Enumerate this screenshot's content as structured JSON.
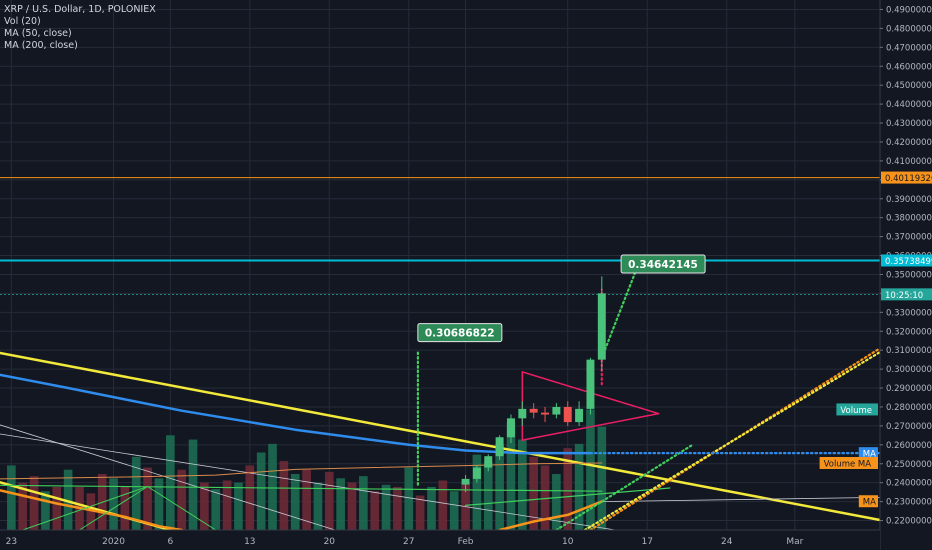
{
  "legend": {
    "title": "XRP / U.S. Dollar, 1D, POLONIEX",
    "vol": "Vol (20)",
    "ma50": "MA (50, close)",
    "ma200": "MA (200, close)"
  },
  "colors": {
    "background": "#131722",
    "grid": "#262b3a",
    "up": "#26a69a",
    "up_bright": "#4bc27b",
    "down": "#ef5350",
    "vol_up": "#1e6b52",
    "vol_down": "#6e2a37",
    "trend_yellow": "#f2e93b",
    "ma200_blue": "#2f8cec",
    "ma50_orange": "#f7931a",
    "projection_green": "#3fcf5a",
    "triangle_pink": "#e91e63",
    "resistance_orange": "#f7931a",
    "resistance_cyan": "#00bcd4"
  },
  "chart_data": {
    "type": "candlestick",
    "title": "XRP / U.S. Dollar, 1D, POLONIEX",
    "ylim": [
      0.215,
      0.495
    ],
    "price_axis_ticks": [
      "0.49000000",
      "0.48000000",
      "0.47000000",
      "0.46000000",
      "0.45000000",
      "0.44000000",
      "0.43000000",
      "0.42000000",
      "0.41000000",
      "0.40000000",
      "0.39000000",
      "0.38000000",
      "0.37000000",
      "0.36000000",
      "0.35000000",
      "0.34000000",
      "0.33000000",
      "0.32000000",
      "0.31000000",
      "0.30000000",
      "0.29000000",
      "0.28000000",
      "0.27000000",
      "0.26000000",
      "0.25000000",
      "0.24000000",
      "0.23000000",
      "0.22000000"
    ],
    "time_axis_ticks": [
      {
        "label": "23",
        "day": -10
      },
      {
        "label": "2020",
        "day": -1
      },
      {
        "label": "6",
        "day": 4
      },
      {
        "label": "13",
        "day": 11
      },
      {
        "label": "20",
        "day": 18
      },
      {
        "label": "27",
        "day": 25
      },
      {
        "label": "Feb",
        "day": 30
      },
      {
        "label": "10",
        "day": 39
      },
      {
        "label": "17",
        "day": 46
      },
      {
        "label": "24",
        "day": 53
      },
      {
        "label": "Mar",
        "day": 59
      }
    ],
    "x_range_days": [
      -11,
      66.5
    ],
    "price_labels": [
      {
        "text": "0.40119326",
        "value": 0.40119326,
        "color": "#f7931a"
      },
      {
        "text": "0.35738499",
        "value": 0.35738499,
        "color": "#00bcd4"
      },
      {
        "text": "10:25:10",
        "value": 0.3395,
        "color": "#26a69a"
      },
      {
        "text": "Volume",
        "value": 0.2787,
        "color": "#26a69a"
      },
      {
        "text": "MA",
        "value": 0.2556,
        "color": "#2f8cec"
      },
      {
        "text": "Volume MA",
        "value": 0.2504,
        "color": "#f7931a"
      },
      {
        "text": "MA",
        "value": 0.2302,
        "color": "#f7931a"
      }
    ],
    "callouts": [
      {
        "text": "0.30686822",
        "x": 25.8,
        "y": 0.3193
      },
      {
        "text": "0.34642145",
        "x": 43.7,
        "y": 0.3555
      }
    ],
    "candles": [
      {
        "day": 30,
        "open": 0.239,
        "high": 0.244,
        "low": 0.235,
        "close": 0.242
      },
      {
        "day": 31,
        "open": 0.242,
        "high": 0.249,
        "low": 0.24,
        "close": 0.248
      },
      {
        "day": 32,
        "open": 0.248,
        "high": 0.255,
        "low": 0.246,
        "close": 0.254
      },
      {
        "day": 33,
        "open": 0.254,
        "high": 0.265,
        "low": 0.252,
        "close": 0.264
      },
      {
        "day": 34,
        "open": 0.264,
        "high": 0.276,
        "low": 0.261,
        "close": 0.274
      },
      {
        "day": 35,
        "open": 0.274,
        "high": 0.283,
        "low": 0.27,
        "close": 0.279
      },
      {
        "day": 36,
        "open": 0.279,
        "high": 0.282,
        "low": 0.274,
        "close": 0.277
      },
      {
        "day": 37,
        "open": 0.277,
        "high": 0.28,
        "low": 0.272,
        "close": 0.276
      },
      {
        "day": 38,
        "open": 0.276,
        "high": 0.282,
        "low": 0.274,
        "close": 0.28
      },
      {
        "day": 39,
        "open": 0.28,
        "high": 0.283,
        "low": 0.27,
        "close": 0.272
      },
      {
        "day": 40,
        "open": 0.272,
        "high": 0.283,
        "low": 0.27,
        "close": 0.279
      },
      {
        "day": 41,
        "open": 0.279,
        "high": 0.306,
        "low": 0.276,
        "close": 0.305
      },
      {
        "day": 42,
        "open": 0.305,
        "high": 0.349,
        "low": 0.299,
        "close": 0.34
      }
    ],
    "volume": [
      {
        "day": -10,
        "v": 0.3,
        "up": true
      },
      {
        "day": -9,
        "v": 0.22,
        "up": false
      },
      {
        "day": -8,
        "v": 0.25,
        "up": false
      },
      {
        "day": -7,
        "v": 0.18,
        "up": true
      },
      {
        "day": -6,
        "v": 0.2,
        "up": false
      },
      {
        "day": -5,
        "v": 0.28,
        "up": true
      },
      {
        "day": -4,
        "v": 0.2,
        "up": false
      },
      {
        "day": -3,
        "v": 0.17,
        "up": false
      },
      {
        "day": -2,
        "v": 0.26,
        "up": false
      },
      {
        "day": -1,
        "v": 0.24,
        "up": true
      },
      {
        "day": 0,
        "v": 0.2,
        "up": false
      },
      {
        "day": 1,
        "v": 0.34,
        "up": true
      },
      {
        "day": 2,
        "v": 0.29,
        "up": false
      },
      {
        "day": 3,
        "v": 0.24,
        "up": true
      },
      {
        "day": 4,
        "v": 0.44,
        "up": true
      },
      {
        "day": 5,
        "v": 0.28,
        "up": false
      },
      {
        "day": 6,
        "v": 0.42,
        "up": true
      },
      {
        "day": 7,
        "v": 0.22,
        "up": false
      },
      {
        "day": 8,
        "v": 0.19,
        "up": true
      },
      {
        "day": 9,
        "v": 0.23,
        "up": false
      },
      {
        "day": 10,
        "v": 0.22,
        "up": true
      },
      {
        "day": 11,
        "v": 0.3,
        "up": false
      },
      {
        "day": 12,
        "v": 0.36,
        "up": true
      },
      {
        "day": 13,
        "v": 0.4,
        "up": true
      },
      {
        "day": 14,
        "v": 0.32,
        "up": false
      },
      {
        "day": 15,
        "v": 0.26,
        "up": true
      },
      {
        "day": 16,
        "v": 0.28,
        "up": false
      },
      {
        "day": 17,
        "v": 0.22,
        "up": true
      },
      {
        "day": 18,
        "v": 0.27,
        "up": false
      },
      {
        "day": 19,
        "v": 0.24,
        "up": true
      },
      {
        "day": 20,
        "v": 0.22,
        "up": false
      },
      {
        "day": 21,
        "v": 0.25,
        "up": true
      },
      {
        "day": 22,
        "v": 0.18,
        "up": false
      },
      {
        "day": 23,
        "v": 0.21,
        "up": true
      },
      {
        "day": 24,
        "v": 0.2,
        "up": false
      },
      {
        "day": 25,
        "v": 0.29,
        "up": true
      },
      {
        "day": 26,
        "v": 0.16,
        "up": false
      },
      {
        "day": 27,
        "v": 0.2,
        "up": true
      },
      {
        "day": 28,
        "v": 0.23,
        "up": false
      },
      {
        "day": 29,
        "v": 0.18,
        "up": true
      },
      {
        "day": 30,
        "v": 0.22,
        "up": false
      },
      {
        "day": 31,
        "v": 0.35,
        "up": true
      },
      {
        "day": 32,
        "v": 0.32,
        "up": true
      },
      {
        "day": 33,
        "v": 0.4,
        "up": true
      },
      {
        "day": 34,
        "v": 0.5,
        "up": true
      },
      {
        "day": 35,
        "v": 0.42,
        "up": true
      },
      {
        "day": 36,
        "v": 0.34,
        "up": false
      },
      {
        "day": 37,
        "v": 0.3,
        "up": false
      },
      {
        "day": 38,
        "v": 0.26,
        "up": true
      },
      {
        "day": 39,
        "v": 0.38,
        "up": false
      },
      {
        "day": 40,
        "v": 0.4,
        "up": true
      },
      {
        "day": 41,
        "v": 0.56,
        "up": true
      },
      {
        "day": 42,
        "v": 0.48,
        "up": true
      }
    ],
    "volume_max_label": 0.2787,
    "volume_base": 0.215,
    "lines": [
      {
        "name": "trend-yellow",
        "color": "#f2e93b",
        "width": 2.5,
        "points": [
          [
            -11,
            0.3085
          ],
          [
            66.5,
            0.2203
          ]
        ]
      },
      {
        "name": "trend-yellow-lower",
        "color": "#f2e93b",
        "width": 2.5,
        "points": [
          [
            -11,
            0.2402
          ],
          [
            4,
            0.215
          ]
        ]
      },
      {
        "name": "trend-white",
        "color": "#c9ccd4",
        "width": 0.8,
        "points": [
          [
            -11,
            0.2657
          ],
          [
            43.2,
            0.215
          ]
        ]
      },
      {
        "name": "trend-white-steep",
        "color": "#c9ccd4",
        "width": 0.8,
        "points": [
          [
            -11,
            0.2705
          ],
          [
            18.5,
            0.215
          ]
        ]
      },
      {
        "name": "ma200",
        "color": "#2f8cec",
        "width": 2.5,
        "points": [
          [
            -11,
            0.297
          ],
          [
            -5,
            0.29
          ],
          [
            0,
            0.284
          ],
          [
            5,
            0.278
          ],
          [
            10,
            0.273
          ],
          [
            15,
            0.268
          ],
          [
            20,
            0.264
          ],
          [
            25,
            0.26
          ],
          [
            30,
            0.257
          ],
          [
            35,
            0.2556
          ],
          [
            41,
            0.2556
          ]
        ]
      },
      {
        "name": "ma50",
        "color": "#f7931a",
        "width": 2.5,
        "points": [
          [
            -11,
            0.236
          ],
          [
            -6,
            0.229
          ],
          [
            0,
            0.222
          ],
          [
            3,
            0.217
          ],
          [
            5,
            0.215
          ]
        ]
      },
      {
        "name": "ma50-right",
        "color": "#f7931a",
        "width": 2.5,
        "points": [
          [
            33,
            0.215
          ],
          [
            36,
            0.2195
          ],
          [
            39,
            0.223
          ],
          [
            42,
            0.23
          ]
        ]
      },
      {
        "name": "volume-ma",
        "color": "#d98a4a",
        "width": 1,
        "points": [
          [
            -11,
            0.242
          ],
          [
            0,
            0.243
          ],
          [
            8,
            0.244
          ],
          [
            15,
            0.247
          ],
          [
            22,
            0.248
          ],
          [
            30,
            0.249
          ],
          [
            36,
            0.25
          ],
          [
            42,
            0.2504
          ]
        ]
      },
      {
        "name": "green-support",
        "color": "#3fcf5a",
        "width": 1.2,
        "points": [
          [
            -11,
            0.2386
          ],
          [
            42,
            0.2355
          ]
        ]
      },
      {
        "name": "green-support-2",
        "color": "#3fcf5a",
        "width": 1.2,
        "points": [
          [
            30,
            0.228
          ],
          [
            48,
            0.2372
          ]
        ]
      },
      {
        "name": "green-fan-1",
        "color": "#3fcf5a",
        "width": 1,
        "points": [
          [
            -4,
            0.215
          ],
          [
            2,
            0.238
          ]
        ]
      },
      {
        "name": "green-fan-2",
        "color": "#3fcf5a",
        "width": 1,
        "points": [
          [
            2,
            0.238
          ],
          [
            8,
            0.215
          ]
        ]
      },
      {
        "name": "green-fan-3",
        "color": "#3fcf5a",
        "width": 1,
        "points": [
          [
            -9,
            0.215
          ],
          [
            2,
            0.238
          ]
        ]
      },
      {
        "name": "thin-white-horizontal",
        "color": "#c9ccd4",
        "width": 0.8,
        "points": [
          [
            42,
            0.23
          ],
          [
            66.5,
            0.2322
          ]
        ]
      },
      {
        "name": "triangle-top",
        "color": "#e91e63",
        "width": 1.5,
        "points": [
          [
            35,
            0.2985
          ],
          [
            47,
            0.2765
          ]
        ]
      },
      {
        "name": "triangle-bottom",
        "color": "#e91e63",
        "width": 1.5,
        "points": [
          [
            35,
            0.2625
          ],
          [
            47,
            0.2765
          ]
        ]
      },
      {
        "name": "triangle-left",
        "color": "#e91e63",
        "width": 1.5,
        "points": [
          [
            35,
            0.2985
          ],
          [
            35,
            0.2625
          ]
        ]
      }
    ],
    "dotted_lines": [
      {
        "name": "projection-orange",
        "color": "#f7931a",
        "points": [
          [
            41,
            0.215
          ],
          [
            66.5,
            0.311
          ]
        ]
      },
      {
        "name": "projection-yellow",
        "color": "#f2e93b",
        "points": [
          [
            40.5,
            0.215
          ],
          [
            66.5,
            0.309
          ]
        ]
      },
      {
        "name": "projection-green-1",
        "color": "#3fcf5a",
        "points": [
          [
            25.8,
            0.239
          ],
          [
            25.8,
            0.31
          ]
        ]
      },
      {
        "name": "projection-green-2",
        "color": "#3fcf5a",
        "points": [
          [
            38,
            0.215
          ],
          [
            50,
            0.26
          ]
        ]
      },
      {
        "name": "projection-green-3",
        "color": "#3fcf5a",
        "points": [
          [
            42,
            0.306
          ],
          [
            45,
            0.352
          ]
        ]
      },
      {
        "name": "ma-blue-extension",
        "color": "#2f8cec",
        "points": [
          [
            41,
            0.2556
          ],
          [
            66.5,
            0.2556
          ]
        ]
      },
      {
        "name": "pink-dots",
        "color": "#e91e63",
        "points": [
          [
            42,
            0.292
          ],
          [
            42,
            0.342
          ]
        ]
      }
    ],
    "h_lines": [
      {
        "name": "resistance-orange",
        "value": 0.40119326,
        "color": "#f7931a",
        "width": 1
      },
      {
        "name": "resistance-cyan",
        "value": 0.35738499,
        "color": "#00bcd4",
        "width": 2
      },
      {
        "name": "current-price",
        "value": 0.3395,
        "color": "#26a69a",
        "width": 0.8,
        "dashed": true
      }
    ]
  }
}
